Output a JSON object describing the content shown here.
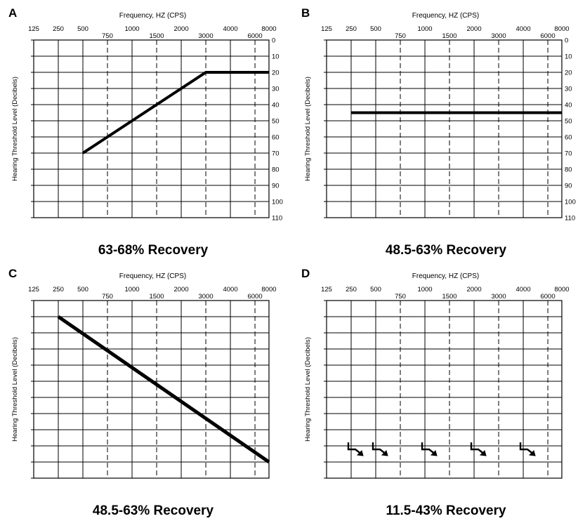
{
  "chart_data": [
    {
      "type": "line",
      "panel_label": "A",
      "caption": "63-68% Recovery",
      "xlabel": "Frequency, HZ (CPS)",
      "ylabel": "Hearing Threshold Level (Decibels)",
      "x_ticks": [
        "125",
        "250",
        "500",
        "750",
        "1000",
        "1500",
        "2000",
        "3000",
        "4000",
        "6000",
        "8000"
      ],
      "y_ticks": [
        0,
        10,
        20,
        30,
        40,
        50,
        60,
        70,
        80,
        90,
        100,
        110
      ],
      "show_y_tick_labels": true,
      "ylim": [
        0,
        110
      ],
      "y_inverted": true,
      "grid": true,
      "series": [
        {
          "x": [
            "500",
            "3000",
            "8000"
          ],
          "y": [
            70,
            20,
            20
          ]
        }
      ]
    },
    {
      "type": "line",
      "panel_label": "B",
      "caption": "48.5-63% Recovery",
      "xlabel": "Frequency, HZ (CPS)",
      "ylabel": "Hearing Threshold Level (Decibels)",
      "x_ticks": [
        "125",
        "250",
        "500",
        "750",
        "1000",
        "1500",
        "2000",
        "3000",
        "4000",
        "6000",
        "8000"
      ],
      "y_ticks": [
        0,
        10,
        20,
        30,
        40,
        50,
        60,
        70,
        80,
        90,
        100,
        110
      ],
      "show_y_tick_labels": true,
      "ylim": [
        0,
        110
      ],
      "y_inverted": true,
      "grid": true,
      "series": [
        {
          "x": [
            "250",
            "8000"
          ],
          "y": [
            45,
            45
          ]
        }
      ]
    },
    {
      "type": "line",
      "panel_label": "C",
      "caption": "48.5-63% Recovery",
      "xlabel": "Frequency, HZ (CPS)",
      "ylabel": "Hearing Threshold Level (Decibels)",
      "x_ticks": [
        "125",
        "250",
        "500",
        "750",
        "1000",
        "1500",
        "2000",
        "3000",
        "4000",
        "6000",
        "8000"
      ],
      "y_ticks": [
        0,
        10,
        20,
        30,
        40,
        50,
        60,
        70,
        80,
        90,
        100,
        110
      ],
      "show_y_tick_labels": false,
      "ylim": [
        0,
        110
      ],
      "y_inverted": true,
      "grid": true,
      "series": [
        {
          "x": [
            "250",
            "8000"
          ],
          "y": [
            10,
            100
          ]
        }
      ]
    },
    {
      "type": "scatter",
      "panel_label": "D",
      "caption": "11.5-43% Recovery",
      "xlabel": "Frequency, HZ (CPS)",
      "ylabel": "Hearing Threshold Level (Decibels)",
      "x_ticks": [
        "125",
        "250",
        "500",
        "750",
        "1000",
        "1500",
        "2000",
        "3000",
        "4000",
        "6000",
        "8000"
      ],
      "y_ticks": [
        0,
        10,
        20,
        30,
        40,
        50,
        60,
        70,
        80,
        90,
        100,
        110
      ],
      "show_y_tick_labels": false,
      "ylim": [
        0,
        110
      ],
      "y_inverted": true,
      "grid": true,
      "marker": "no-response-arrow",
      "series": [
        {
          "x": [
            "250",
            "500",
            "1000",
            "2000",
            "4000"
          ],
          "y": [
            90,
            90,
            90,
            90,
            90
          ]
        }
      ]
    }
  ]
}
